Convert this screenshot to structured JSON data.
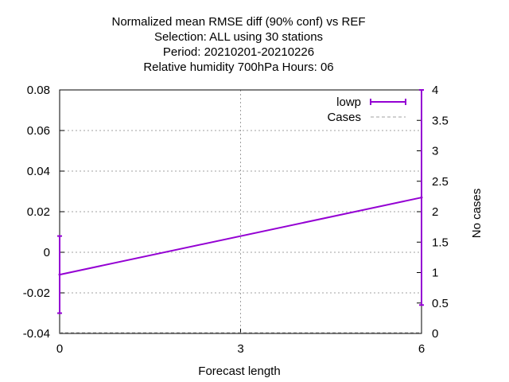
{
  "chart_data": {
    "type": "line",
    "title_lines": [
      "Normalized mean RMSE diff (90% conf) vs REF",
      "Selection: ALL using    30 stations",
      "Period: 20210201-20210226",
      "Relative humidity 700hPa   Hours:  06"
    ],
    "xlabel": "Forecast length",
    "ylabel": "",
    "y2label": "No cases",
    "xlim": [
      0,
      6
    ],
    "ylim": [
      -0.04,
      0.08
    ],
    "y2lim": [
      0,
      4
    ],
    "x_ticks": [
      0,
      3,
      6
    ],
    "y_ticks": [
      -0.04,
      -0.02,
      0,
      0.02,
      0.04,
      0.06,
      0.08
    ],
    "y_tick_labels": [
      "-0.04",
      "-0.02",
      "0",
      "0.02",
      "0.04",
      "0.06",
      "0.08"
    ],
    "y2_ticks": [
      0,
      0.5,
      1,
      1.5,
      2,
      2.5,
      3,
      3.5,
      4
    ],
    "y2_tick_labels": [
      "0",
      "0.5",
      "1",
      "1.5",
      "2",
      "2.5",
      "3",
      "3.5",
      "4"
    ],
    "grid": true,
    "legend_position": "top-right",
    "series": [
      {
        "name": "lowp",
        "color": "#9400d3",
        "style": "errorbars",
        "x": [
          0,
          6
        ],
        "y": [
          -0.011,
          0.027
        ],
        "err_low": [
          -0.03,
          -0.026
        ],
        "err_high": [
          0.008,
          0.08
        ]
      },
      {
        "name": "Cases",
        "color": "#a0a0a0",
        "style": "dashed",
        "x": [
          0,
          6
        ],
        "y2": [
          0,
          0
        ]
      }
    ]
  }
}
